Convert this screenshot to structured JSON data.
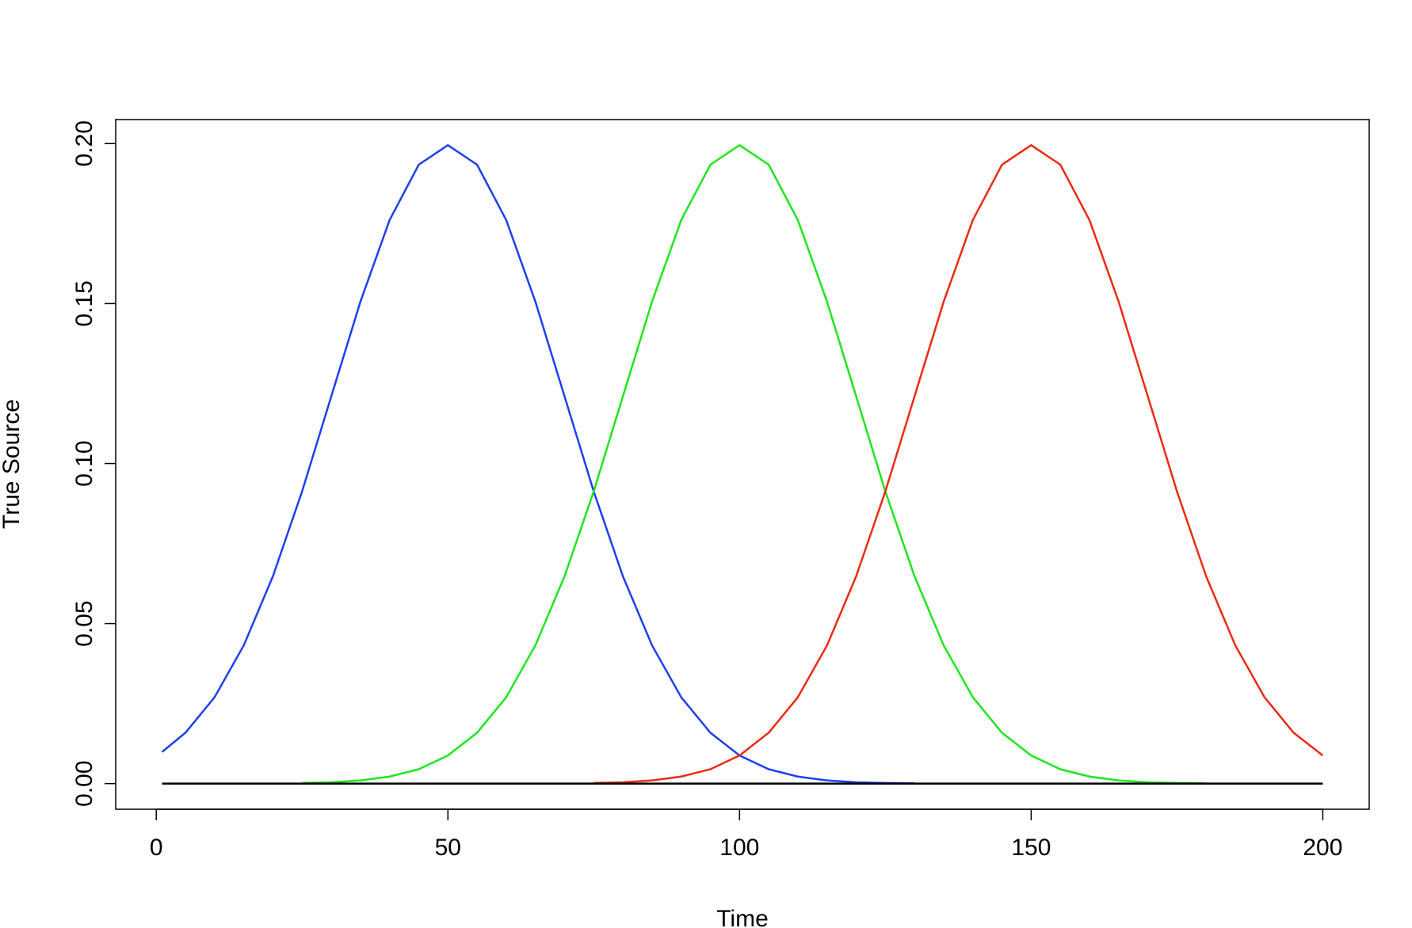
{
  "chart_data": {
    "type": "line",
    "xlabel": "Time",
    "ylabel": "True Source",
    "x": [
      1,
      5,
      10,
      15,
      20,
      25,
      30,
      35,
      40,
      45,
      50,
      55,
      60,
      65,
      70,
      75,
      80,
      85,
      90,
      95,
      100,
      105,
      110,
      115,
      120,
      125,
      130,
      135,
      140,
      145,
      150,
      155,
      160,
      165,
      170,
      175,
      180,
      185,
      190,
      195,
      200
    ],
    "series": [
      {
        "color": "#1f3ff0",
        "values": [
          0.0099,
          0.0159,
          0.027,
          0.0432,
          0.0648,
          0.0913,
          0.121,
          0.1506,
          0.1761,
          0.1934,
          0.1995,
          0.1934,
          0.1761,
          0.1506,
          0.121,
          0.0913,
          0.0648,
          0.0432,
          0.027,
          0.0159,
          0.0088,
          0.0045,
          0.0022,
          0.001,
          0.0004,
          0.0002,
          0.0001,
          null,
          null,
          null,
          null,
          null,
          null,
          null,
          null,
          null,
          null,
          null,
          null,
          null,
          null
        ]
      },
      {
        "color": "#1ee61e",
        "values": [
          null,
          null,
          null,
          null,
          null,
          0.0002,
          0.0004,
          0.001,
          0.0022,
          0.0045,
          0.0088,
          0.0159,
          0.027,
          0.0432,
          0.0648,
          0.0913,
          0.121,
          0.1506,
          0.1761,
          0.1934,
          0.1995,
          0.1934,
          0.1761,
          0.1506,
          0.121,
          0.0913,
          0.0648,
          0.0432,
          0.027,
          0.0159,
          0.0088,
          0.0045,
          0.0022,
          0.001,
          0.0004,
          0.0002,
          0.0001,
          null,
          null,
          null,
          null
        ]
      },
      {
        "color": "#ec2a14",
        "values": [
          null,
          null,
          null,
          null,
          null,
          null,
          null,
          null,
          null,
          null,
          null,
          null,
          null,
          null,
          null,
          0.0002,
          0.0004,
          0.001,
          0.0022,
          0.0045,
          0.0088,
          0.0159,
          0.027,
          0.0432,
          0.0648,
          0.0913,
          0.121,
          0.1506,
          0.1761,
          0.1934,
          0.1995,
          0.1934,
          0.1761,
          0.1506,
          0.121,
          0.0913,
          0.0648,
          0.0432,
          0.027,
          0.0159,
          0.0088
        ]
      },
      {
        "color": "#000000",
        "values": [
          0,
          0,
          0,
          0,
          0,
          0,
          0,
          0,
          0,
          0,
          0,
          0,
          0,
          0,
          0,
          0,
          0,
          0,
          0,
          0,
          0,
          0,
          0,
          0,
          0,
          0,
          0,
          0,
          0,
          0,
          0,
          0,
          0,
          0,
          0,
          0,
          0,
          0,
          0,
          0,
          0
        ]
      }
    ],
    "xlim": [
      -6.96,
      207.96
    ],
    "xticks": [
      0,
      50,
      100,
      150,
      200
    ],
    "ylim": [
      -0.008,
      0.2075
    ],
    "yticks": [
      {
        "value": 0,
        "label": "0.00"
      },
      {
        "value": 0.05,
        "label": "0.05"
      },
      {
        "value": 0.1,
        "label": "0.10"
      },
      {
        "value": 0.15,
        "label": "0.15"
      },
      {
        "value": 0.2,
        "label": "0.20"
      }
    ]
  }
}
